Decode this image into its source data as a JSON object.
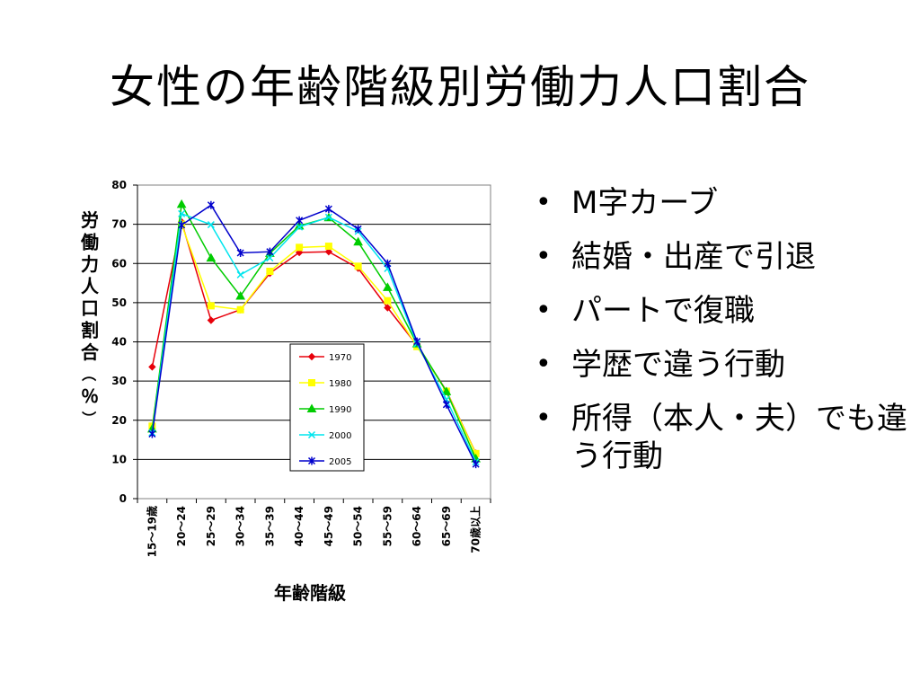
{
  "slide": {
    "title": "女性の年齢階級別労働力人口割合",
    "bullets": [
      "M字カーブ",
      "結婚・出産で引退",
      "パートで復職",
      "学歴で違う行動",
      "所得（本人・夫）でも違う行動"
    ]
  },
  "chart_data": {
    "type": "line",
    "xlabel": "年齢階級",
    "ylabel": "労働力人口割合（％）",
    "ylim": [
      0,
      80
    ],
    "yticks": [
      0,
      10,
      20,
      30,
      40,
      50,
      60,
      70,
      80
    ],
    "grid": true,
    "legend_position": "center-left",
    "categories": [
      "15～19歳",
      "20～24",
      "25～29",
      "30～34",
      "35～39",
      "40～44",
      "45～49",
      "50～54",
      "55～59",
      "60～64",
      "65～69",
      "70歳以上"
    ],
    "series": [
      {
        "name": "1970",
        "color": "#e8000b",
        "marker": "diamond",
        "values": [
          33.6,
          70.6,
          45.5,
          48.2,
          57.5,
          62.8,
          63.0,
          58.8,
          48.7,
          39.1,
          27.5,
          11.6
        ]
      },
      {
        "name": "1980",
        "color": "#ffff00",
        "marker": "square",
        "values": [
          18.5,
          70.0,
          49.2,
          48.2,
          58.0,
          64.1,
          64.4,
          59.3,
          50.5,
          38.8,
          27.4,
          11.5
        ]
      },
      {
        "name": "1990",
        "color": "#00cc00",
        "marker": "triangle",
        "values": [
          17.8,
          75.1,
          61.4,
          51.7,
          62.6,
          69.6,
          71.7,
          65.5,
          53.9,
          39.5,
          27.3,
          10.2
        ]
      },
      {
        "name": "2000",
        "color": "#00e5ee",
        "marker": "x",
        "values": [
          16.8,
          72.7,
          69.9,
          57.1,
          61.4,
          69.3,
          71.8,
          68.2,
          58.7,
          39.5,
          25.3,
          9.4
        ]
      },
      {
        "name": "2005",
        "color": "#0000cc",
        "marker": "star",
        "values": [
          16.5,
          69.8,
          74.9,
          62.7,
          63.0,
          71.0,
          73.9,
          68.8,
          60.0,
          40.1,
          24.0,
          8.8
        ]
      }
    ]
  }
}
